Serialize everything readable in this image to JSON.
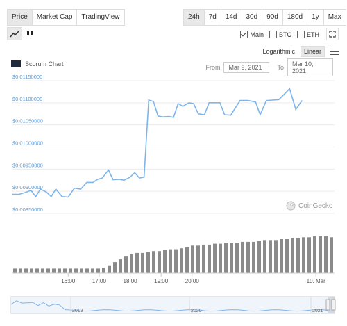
{
  "tabs": [
    "Price",
    "Market Cap",
    "TradingView"
  ],
  "active_tab": "Price",
  "ranges": [
    "24h",
    "7d",
    "14d",
    "30d",
    "90d",
    "180d",
    "1y",
    "Max"
  ],
  "active_range": "24h",
  "series_toggles": [
    {
      "label": "Main",
      "checked": true
    },
    {
      "label": "BTC",
      "checked": false
    },
    {
      "label": "ETH",
      "checked": false
    }
  ],
  "scale": {
    "log_label": "Logarithmic",
    "linear_label": "Linear",
    "active": "Linear"
  },
  "chart_title": "Scorum Chart",
  "date_range": {
    "from_label": "From",
    "from_value": "Mar 9, 2021",
    "to_label": "To",
    "to_value": "Mar 10, 2021"
  },
  "watermark": "CoinGecko",
  "icons": [
    "line-chart-icon",
    "candlestick-icon",
    "checkbox-icon",
    "menu-icon",
    "fullscreen-icon",
    "coingecko-logo-icon"
  ],
  "colors": {
    "line": "#7cb5ec",
    "volume": "#8a8a8a",
    "axis_text": "#5b9bd5",
    "grid": "#ececec"
  },
  "chart_data": {
    "type": "line",
    "title": "Scorum Chart",
    "y_ticks": [
      "$0.01150000",
      "$0.01100000",
      "$0.01050000",
      "$0.01000000",
      "$0.00950000",
      "$0.00900000",
      "$0.00850000"
    ],
    "ylim": [
      0.0085,
      0.0115
    ],
    "x_ticks": [
      "16:00",
      "17:00",
      "18:00",
      "19:00",
      "20:00",
      "10. Mar"
    ],
    "x_tick_hours": [
      16,
      17,
      18,
      19,
      20,
      24
    ],
    "xlim": [
      14.2,
      24.6
    ],
    "series": [
      {
        "values": [
          [
            14.2,
            0.00893
          ],
          [
            14.4,
            0.00893
          ],
          [
            14.6,
            0.00897
          ],
          [
            14.8,
            0.00902
          ],
          [
            14.95,
            0.00888
          ],
          [
            15.1,
            0.00905
          ],
          [
            15.3,
            0.00898
          ],
          [
            15.45,
            0.00888
          ],
          [
            15.6,
            0.00905
          ],
          [
            15.8,
            0.00888
          ],
          [
            16.0,
            0.00887
          ],
          [
            16.2,
            0.00907
          ],
          [
            16.4,
            0.00905
          ],
          [
            16.6,
            0.0092
          ],
          [
            16.8,
            0.0092
          ],
          [
            16.95,
            0.00927
          ],
          [
            17.1,
            0.0093
          ],
          [
            17.3,
            0.00948
          ],
          [
            17.45,
            0.00926
          ],
          [
            17.65,
            0.00927
          ],
          [
            17.8,
            0.00925
          ],
          [
            18.0,
            0.00932
          ],
          [
            18.15,
            0.00942
          ],
          [
            18.3,
            0.0093
          ],
          [
            18.45,
            0.00932
          ],
          [
            18.6,
            0.01106
          ],
          [
            18.75,
            0.01103
          ],
          [
            18.9,
            0.0107
          ],
          [
            19.05,
            0.01068
          ],
          [
            19.25,
            0.01069
          ],
          [
            19.4,
            0.01067
          ],
          [
            19.55,
            0.01098
          ],
          [
            19.7,
            0.01092
          ],
          [
            19.9,
            0.011
          ],
          [
            20.05,
            0.01098
          ],
          [
            20.2,
            0.01075
          ],
          [
            20.4,
            0.01073
          ],
          [
            20.55,
            0.011
          ],
          [
            20.75,
            0.011
          ],
          [
            20.9,
            0.011
          ],
          [
            21.05,
            0.01073
          ],
          [
            21.25,
            0.01072
          ],
          [
            21.55,
            0.01105
          ],
          [
            21.8,
            0.01105
          ],
          [
            22.05,
            0.01102
          ],
          [
            22.2,
            0.01073
          ],
          [
            22.4,
            0.01105
          ],
          [
            22.6,
            0.01106
          ],
          [
            22.8,
            0.01107
          ],
          [
            23.0,
            0.01121
          ],
          [
            23.15,
            0.01132
          ],
          [
            23.35,
            0.01085
          ],
          [
            23.55,
            0.01105
          ]
        ]
      }
    ],
    "volume": [
      0.1,
      0.1,
      0.1,
      0.1,
      0.1,
      0.1,
      0.1,
      0.1,
      0.1,
      0.1,
      0.1,
      0.1,
      0.1,
      0.1,
      0.1,
      0.1,
      0.12,
      0.17,
      0.24,
      0.3,
      0.36,
      0.42,
      0.44,
      0.44,
      0.46,
      0.48,
      0.48,
      0.5,
      0.52,
      0.52,
      0.54,
      0.56,
      0.6,
      0.6,
      0.62,
      0.62,
      0.64,
      0.64,
      0.66,
      0.66,
      0.66,
      0.68,
      0.68,
      0.68,
      0.7,
      0.72,
      0.72,
      0.72,
      0.74,
      0.74,
      0.76,
      0.76,
      0.78,
      0.78,
      0.8,
      0.8,
      0.8,
      0.78
    ],
    "navigator": {
      "year_labels": [
        "2019",
        "2020",
        "2021"
      ]
    }
  }
}
